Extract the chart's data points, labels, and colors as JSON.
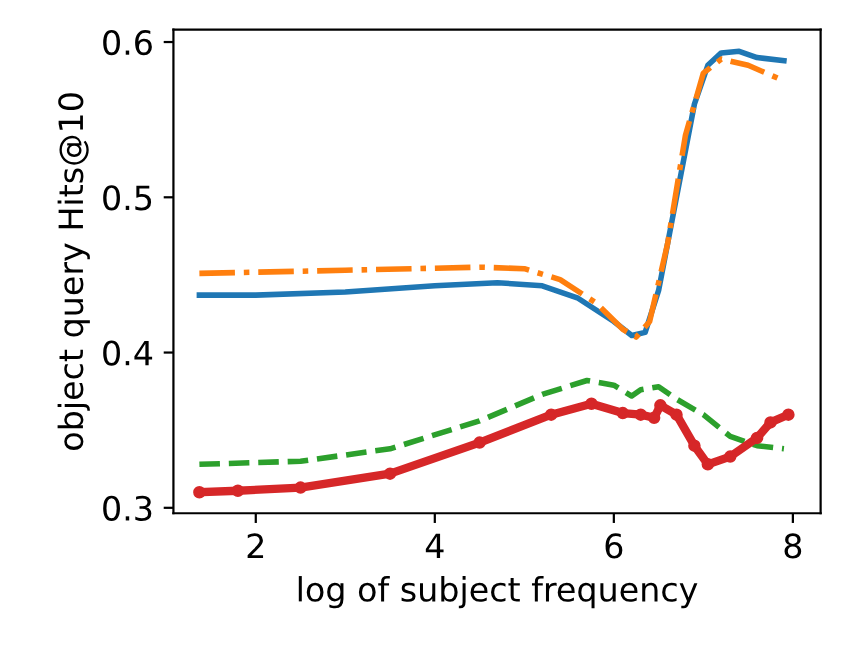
{
  "chart_data": {
    "type": "line",
    "xlabel": "log of subject frequency",
    "ylabel": "object query Hits@10",
    "xlim": [
      1.08,
      8.31
    ],
    "ylim": [
      0.2965,
      0.608
    ],
    "xticks": [
      2,
      4,
      6,
      8
    ],
    "yticks": [
      0.3,
      0.4,
      0.5,
      0.6
    ],
    "grid": false,
    "legend": false,
    "series": [
      {
        "color": "#1f77b4",
        "line_style": "solid",
        "marker": "none",
        "x": [
          1.37,
          2,
          3,
          4,
          4.7,
          5.2,
          5.6,
          6.0,
          6.2,
          6.35,
          6.5,
          6.7,
          6.9,
          7.05,
          7.2,
          7.4,
          7.6,
          7.9
        ],
        "values": [
          0.437,
          0.437,
          0.439,
          0.443,
          0.445,
          0.443,
          0.435,
          0.42,
          0.411,
          0.413,
          0.44,
          0.5,
          0.56,
          0.585,
          0.593,
          0.594,
          0.59,
          0.588
        ]
      },
      {
        "color": "#ff7f0e",
        "line_style": "dashdot",
        "marker": "none",
        "x": [
          1.37,
          3,
          4.5,
          5.0,
          5.4,
          5.8,
          6.1,
          6.25,
          6.4,
          6.6,
          6.8,
          7.0,
          7.2,
          7.5,
          7.9
        ],
        "values": [
          0.451,
          0.453,
          0.455,
          0.454,
          0.447,
          0.432,
          0.415,
          0.41,
          0.42,
          0.47,
          0.54,
          0.58,
          0.589,
          0.585,
          0.575
        ]
      },
      {
        "color": "#2ca02c",
        "line_style": "dashed",
        "marker": "none",
        "x": [
          1.37,
          2.5,
          3.5,
          4.5,
          5.2,
          5.7,
          6.0,
          6.2,
          6.3,
          6.5,
          6.7,
          7.0,
          7.3,
          7.6,
          7.9
        ],
        "values": [
          0.328,
          0.33,
          0.338,
          0.356,
          0.373,
          0.382,
          0.379,
          0.372,
          0.376,
          0.378,
          0.37,
          0.36,
          0.346,
          0.34,
          0.338
        ]
      },
      {
        "color": "#d62728",
        "line_style": "solid",
        "marker": "circle",
        "x": [
          1.37,
          1.8,
          2.5,
          3.5,
          4.5,
          5.3,
          5.75,
          6.1,
          6.3,
          6.45,
          6.52,
          6.7,
          6.9,
          7.05,
          7.3,
          7.6,
          7.75,
          7.95
        ],
        "values": [
          0.31,
          0.311,
          0.313,
          0.322,
          0.342,
          0.36,
          0.367,
          0.361,
          0.36,
          0.358,
          0.366,
          0.36,
          0.34,
          0.328,
          0.333,
          0.345,
          0.355,
          0.36
        ]
      }
    ]
  }
}
